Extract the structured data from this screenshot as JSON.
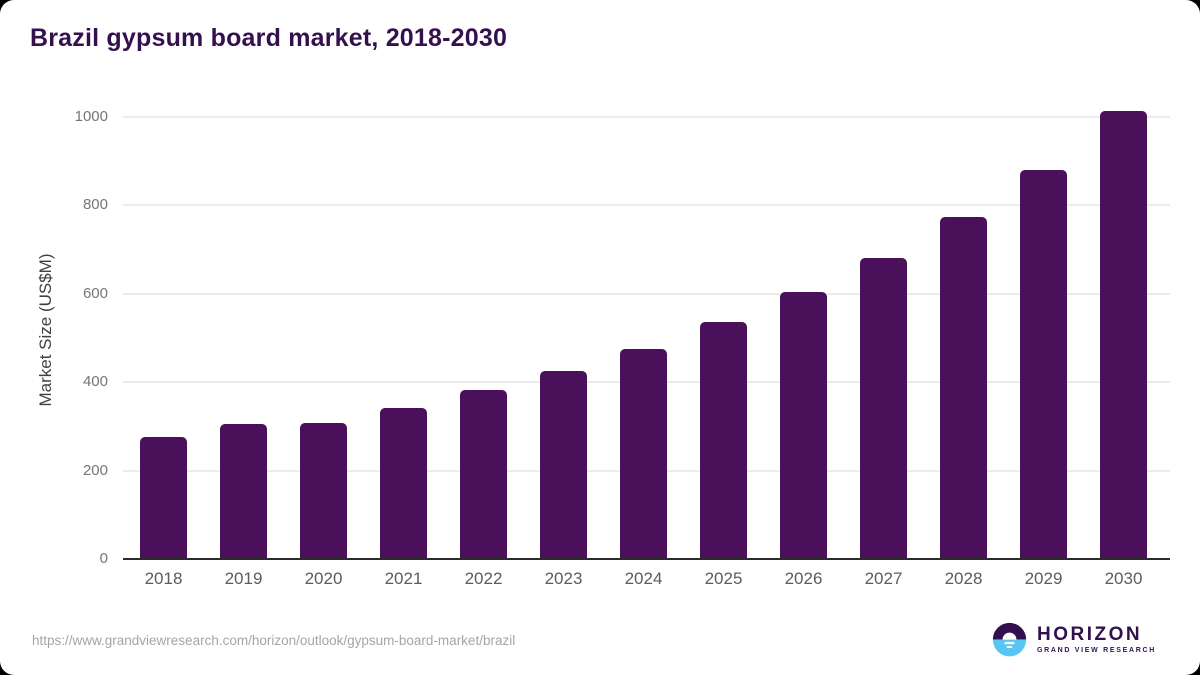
{
  "header": {
    "title": "Brazil gypsum board market, 2018-2030"
  },
  "chart_data": {
    "type": "bar",
    "title": "Brazil gypsum board market, 2018-2030",
    "categories": [
      "2018",
      "2019",
      "2020",
      "2021",
      "2022",
      "2023",
      "2024",
      "2025",
      "2026",
      "2027",
      "2028",
      "2029",
      "2030"
    ],
    "values": [
      273,
      302,
      305,
      338,
      380,
      422,
      473,
      533,
      600,
      677,
      770,
      877,
      1010
    ],
    "xlabel": "",
    "ylabel": "Market Size (US$M)",
    "yticks": [
      0,
      200,
      400,
      600,
      800,
      1000
    ],
    "ylim": [
      0,
      1037
    ],
    "grid": "horizontal-only",
    "legend": "none",
    "bar_color": "#4a105a"
  },
  "colors": {
    "bar": "#4a105a",
    "title": "#35104e",
    "gridline": "#ececec",
    "axis_line": "#2b2b2b",
    "y_tick_label": "#757575",
    "x_tick_label": "#5c5c5c",
    "url_text": "#a5a5a5",
    "logo_purple": "#32104e",
    "logo_blue": "#57c6f2"
  },
  "footer": {
    "source_url": "https://www.grandviewresearch.com/horizon/outlook/gypsum-board-market/brazil",
    "logo_name": "HORIZON",
    "logo_subtitle": "GRAND VIEW RESEARCH"
  }
}
